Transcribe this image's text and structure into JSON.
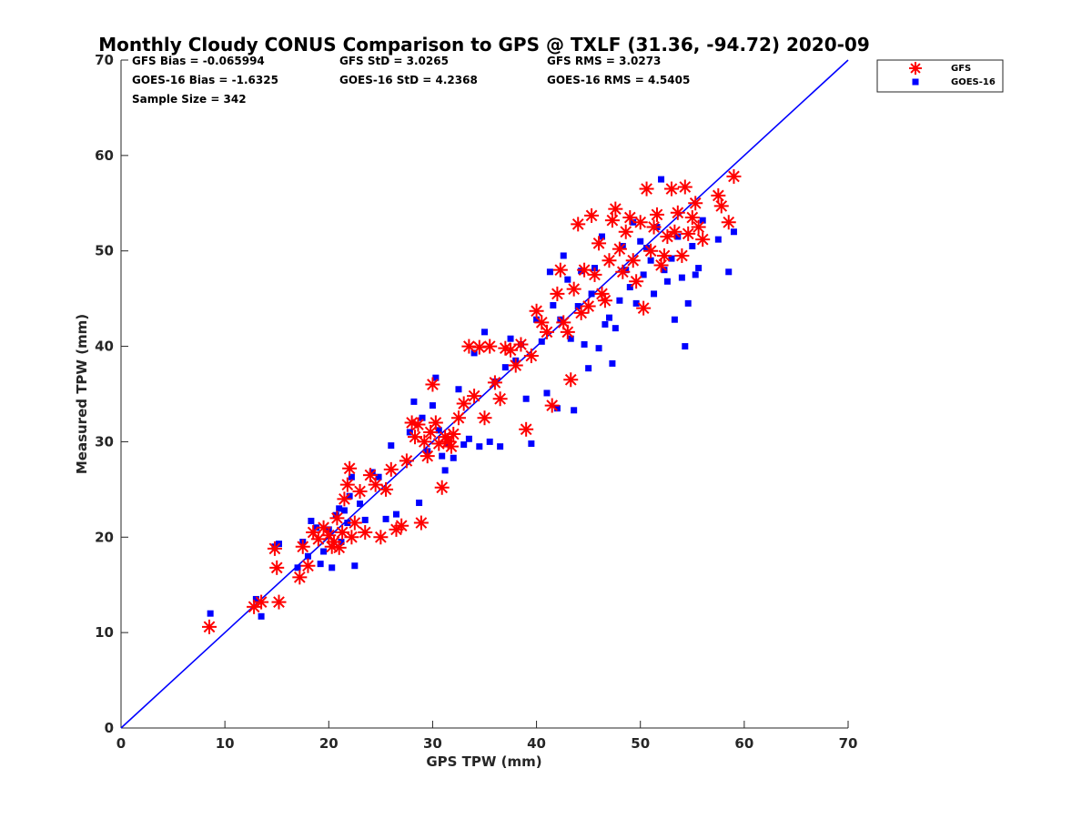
{
  "chart_data": {
    "type": "scatter",
    "title": "Monthly Cloudy CONUS Comparison to GPS @ TXLF (31.36, -94.72) 2020-09",
    "xlabel": "GPS TPW (mm)",
    "ylabel": "Measured TPW (mm)",
    "xlim": [
      0,
      70
    ],
    "ylim": [
      0,
      70
    ],
    "xticks": [
      0,
      10,
      20,
      30,
      40,
      50,
      60,
      70
    ],
    "yticks": [
      0,
      10,
      20,
      30,
      40,
      50,
      60,
      70
    ],
    "grid": false,
    "legend_position": "top-right outside",
    "stats": [
      [
        "GFS Bias = -0.065994",
        "GFS StD = 3.0265",
        "GFS RMS = 3.0273"
      ],
      [
        "GOES-16 Bias = -1.6325",
        "GOES-16 StD = 4.2368",
        "GOES-16 RMS = 4.5405"
      ],
      [
        "Sample Size = 342"
      ]
    ],
    "reference_line": {
      "label": "1:1 line",
      "color": "#0000ff",
      "x": [
        0,
        70
      ],
      "y": [
        0,
        70
      ]
    },
    "series": [
      {
        "name": "GFS",
        "marker": "asterisk",
        "color": "#ff0000",
        "x": [
          8.5,
          12.8,
          13.5,
          14.8,
          15.0,
          15.2,
          17.2,
          17.5,
          18.0,
          18.5,
          19.0,
          19.5,
          20.0,
          20.3,
          20.5,
          20.8,
          21.0,
          21.3,
          21.5,
          21.8,
          22.0,
          22.2,
          22.5,
          23.0,
          23.5,
          24.0,
          24.5,
          25.0,
          25.5,
          26.0,
          26.5,
          27.0,
          27.5,
          28.0,
          28.3,
          28.6,
          28.9,
          29.2,
          29.5,
          29.8,
          30.0,
          30.3,
          30.6,
          30.9,
          31.2,
          31.5,
          31.8,
          32.0,
          32.5,
          33.0,
          33.5,
          34.0,
          34.5,
          35.0,
          35.5,
          36.0,
          36.5,
          37.0,
          37.5,
          38.0,
          38.5,
          39.0,
          39.5,
          40.0,
          40.5,
          41.0,
          41.5,
          42.0,
          42.3,
          42.6,
          43.0,
          43.3,
          43.6,
          44.0,
          44.3,
          44.6,
          45.0,
          45.3,
          45.6,
          46.0,
          46.3,
          46.6,
          47.0,
          47.3,
          47.6,
          48.0,
          48.3,
          48.6,
          49.0,
          49.3,
          49.6,
          50.0,
          50.3,
          50.6,
          51.0,
          51.3,
          51.6,
          52.0,
          52.3,
          52.6,
          53.0,
          53.3,
          53.6,
          54.0,
          54.3,
          54.6,
          55.0,
          55.3,
          55.6,
          56.0,
          57.5,
          57.8,
          58.5,
          59.0
        ],
        "y": [
          10.6,
          12.7,
          13.2,
          18.8,
          16.8,
          13.2,
          15.8,
          19.0,
          17.0,
          20.5,
          19.8,
          21.0,
          20.2,
          19.0,
          19.5,
          22.0,
          18.9,
          20.5,
          24.0,
          25.5,
          27.2,
          20.0,
          21.5,
          24.8,
          20.5,
          26.5,
          25.5,
          20.0,
          25.0,
          27.1,
          20.8,
          21.2,
          28.0,
          32.0,
          30.5,
          31.8,
          21.5,
          30.0,
          28.5,
          31.0,
          36.0,
          32.0,
          29.8,
          25.2,
          30.5,
          30.0,
          29.5,
          30.8,
          32.5,
          34.0,
          40.0,
          34.8,
          39.9,
          32.5,
          40.0,
          36.2,
          34.5,
          39.8,
          39.6,
          38.0,
          40.2,
          31.3,
          39.0,
          43.7,
          42.5,
          41.5,
          33.8,
          45.5,
          48.0,
          42.5,
          41.5,
          36.5,
          46.0,
          52.8,
          43.5,
          48.0,
          44.2,
          53.7,
          47.5,
          50.8,
          45.5,
          44.8,
          49.0,
          53.2,
          54.4,
          50.2,
          47.8,
          52.0,
          53.5,
          49.0,
          46.8,
          53.0,
          44.0,
          56.5,
          50.0,
          52.5,
          53.8,
          48.5,
          49.5,
          51.5,
          56.5,
          52.0,
          54.0,
          49.5,
          56.7,
          51.8,
          53.5,
          55.0,
          52.5,
          51.2,
          55.8,
          54.7,
          53.0,
          57.8
        ]
      },
      {
        "name": "GOES-16",
        "marker": "square",
        "color": "#0000ff",
        "x": [
          8.6,
          13.0,
          13.5,
          14.8,
          15.2,
          17.0,
          17.5,
          18.0,
          18.3,
          18.8,
          19.2,
          19.5,
          20.0,
          20.3,
          20.7,
          21.0,
          21.2,
          21.5,
          21.8,
          22.0,
          22.2,
          22.5,
          23.0,
          23.5,
          24.2,
          24.8,
          25.5,
          26.0,
          26.5,
          27.8,
          28.2,
          28.7,
          29.0,
          29.5,
          30.0,
          30.3,
          30.6,
          30.9,
          31.2,
          31.5,
          32.0,
          32.5,
          33.0,
          33.5,
          34.0,
          34.5,
          35.0,
          35.5,
          36.0,
          36.5,
          37.0,
          37.5,
          38.0,
          38.5,
          39.0,
          39.5,
          40.0,
          40.5,
          41.0,
          41.3,
          41.6,
          42.0,
          42.3,
          42.6,
          43.0,
          43.3,
          43.6,
          44.0,
          44.3,
          44.6,
          45.0,
          45.3,
          45.6,
          46.0,
          46.3,
          46.6,
          47.0,
          47.3,
          47.6,
          48.0,
          48.3,
          48.6,
          49.0,
          49.3,
          49.6,
          50.0,
          50.3,
          50.6,
          51.0,
          51.3,
          51.6,
          52.0,
          52.3,
          52.6,
          53.0,
          53.3,
          53.6,
          54.0,
          54.3,
          54.6,
          55.0,
          55.3,
          55.6,
          56.0,
          57.5,
          58.5,
          59.0
        ],
        "y": [
          12.0,
          13.5,
          11.7,
          19.0,
          19.3,
          16.8,
          19.5,
          18.0,
          21.7,
          21.0,
          17.2,
          18.5,
          20.8,
          16.8,
          22.3,
          23.0,
          19.5,
          22.8,
          21.5,
          24.3,
          26.3,
          17.0,
          23.5,
          21.8,
          26.8,
          26.3,
          21.9,
          29.6,
          22.4,
          31.0,
          34.2,
          23.6,
          32.5,
          29.0,
          33.8,
          36.7,
          31.2,
          28.5,
          27.0,
          29.8,
          28.3,
          35.5,
          29.7,
          30.3,
          39.3,
          29.5,
          41.5,
          30.0,
          36.3,
          29.5,
          37.8,
          40.8,
          38.5,
          40.2,
          34.5,
          29.8,
          42.8,
          40.5,
          35.1,
          47.8,
          44.3,
          33.5,
          42.8,
          49.5,
          47.0,
          40.8,
          33.3,
          44.2,
          47.9,
          40.2,
          37.7,
          45.5,
          48.2,
          39.8,
          51.5,
          42.3,
          43.0,
          38.2,
          41.9,
          44.8,
          50.5,
          48.0,
          46.2,
          53.0,
          44.5,
          51.0,
          47.5,
          50.3,
          49.0,
          45.5,
          52.5,
          57.5,
          48.0,
          46.8,
          49.2,
          42.8,
          51.5,
          47.2,
          40.0,
          44.5,
          50.5,
          47.5,
          48.2,
          53.2,
          51.2,
          47.8,
          52.0
        ]
      }
    ],
    "legend": [
      {
        "label": "GFS",
        "marker": "asterisk",
        "color": "#ff0000"
      },
      {
        "label": "GOES-16",
        "marker": "square",
        "color": "#0000ff"
      }
    ]
  }
}
